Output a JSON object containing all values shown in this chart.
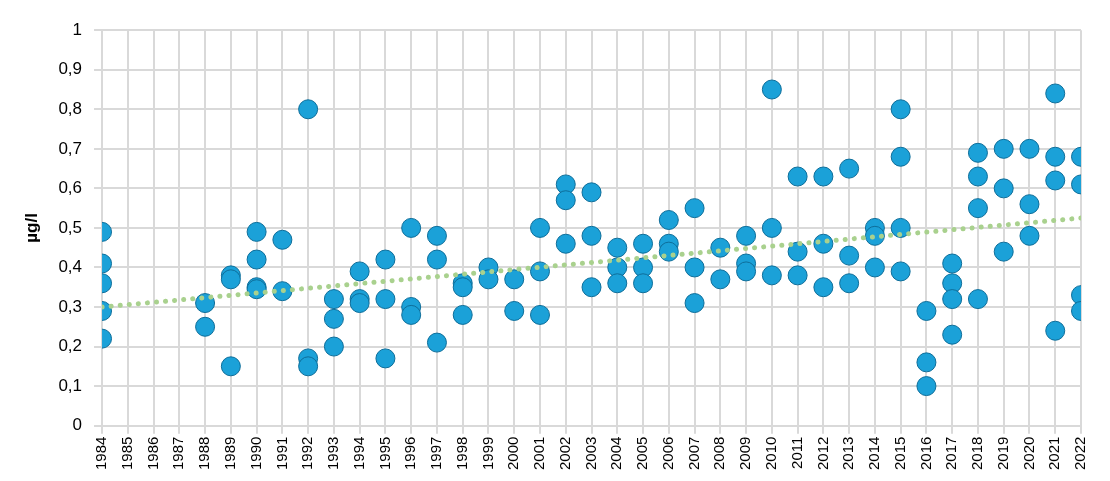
{
  "chart_data": {
    "type": "scatter",
    "ylabel": "µg/l",
    "xlim": [
      1984,
      2022
    ],
    "xticks": [
      1984,
      1985,
      1986,
      1987,
      1988,
      1989,
      1990,
      1991,
      1992,
      1993,
      1994,
      1995,
      1996,
      1997,
      1998,
      1999,
      2000,
      2001,
      2002,
      2003,
      2004,
      2005,
      2006,
      2007,
      2008,
      2009,
      2010,
      2011,
      2012,
      2013,
      2014,
      2015,
      2016,
      2017,
      2018,
      2019,
      2020,
      2021,
      2022
    ],
    "ylim": [
      0,
      1
    ],
    "yticks": [
      0,
      {
        "value": 0.1,
        "label": "0,1"
      },
      {
        "value": 0.2,
        "label": "0,2"
      },
      {
        "value": 0.3,
        "label": "0,3"
      },
      {
        "value": 0.4,
        "label": "0,4"
      },
      {
        "value": 0.5,
        "label": "0,5"
      },
      {
        "value": 0.6,
        "label": "0,6"
      },
      {
        "value": 0.7,
        "label": "0,7"
      },
      {
        "value": 0.8,
        "label": "0,8"
      },
      {
        "value": 0.9,
        "label": "0,9"
      },
      1
    ],
    "grid": true,
    "legend": false,
    "marker": "circle",
    "series": [
      {
        "type": "scatter",
        "color": "#1ba1d8",
        "x": [
          1984,
          1984,
          1984,
          1984,
          1984,
          1988,
          1988,
          1989,
          1989,
          1989,
          1990,
          1990,
          1990,
          1990,
          1991,
          1991,
          1992,
          1992,
          1992,
          1993,
          1993,
          1993,
          1994,
          1994,
          1994,
          1995,
          1995,
          1995,
          1996,
          1996,
          1996,
          1997,
          1997,
          1997,
          1998,
          1998,
          1998,
          1999,
          1999,
          2000,
          2000,
          2001,
          2001,
          2001,
          2002,
          2002,
          2002,
          2003,
          2003,
          2003,
          2004,
          2004,
          2004,
          2005,
          2005,
          2005,
          2006,
          2006,
          2006,
          2007,
          2007,
          2007,
          2008,
          2008,
          2009,
          2009,
          2009,
          2010,
          2010,
          2010,
          2011,
          2011,
          2011,
          2012,
          2012,
          2012,
          2013,
          2013,
          2013,
          2014,
          2014,
          2014,
          2015,
          2015,
          2015,
          2015,
          2016,
          2016,
          2016,
          2017,
          2017,
          2017,
          2017,
          2018,
          2018,
          2018,
          2018,
          2019,
          2019,
          2019,
          2020,
          2020,
          2020,
          2021,
          2021,
          2021,
          2021,
          2022,
          2022,
          2022,
          2022
        ],
        "values": [
          0.49,
          0.41,
          0.36,
          0.29,
          0.22,
          0.31,
          0.25,
          0.38,
          0.37,
          0.15,
          0.49,
          0.42,
          0.35,
          0.345,
          0.47,
          0.34,
          0.8,
          0.17,
          0.15,
          0.32,
          0.27,
          0.2,
          0.39,
          0.32,
          0.31,
          0.42,
          0.32,
          0.17,
          0.5,
          0.3,
          0.28,
          0.48,
          0.42,
          0.21,
          0.36,
          0.35,
          0.28,
          0.4,
          0.37,
          0.37,
          0.29,
          0.5,
          0.39,
          0.28,
          0.61,
          0.57,
          0.46,
          0.59,
          0.48,
          0.35,
          0.45,
          0.4,
          0.36,
          0.46,
          0.4,
          0.36,
          0.52,
          0.46,
          0.44,
          0.55,
          0.4,
          0.31,
          0.45,
          0.37,
          0.48,
          0.41,
          0.39,
          0.85,
          0.5,
          0.38,
          0.63,
          0.44,
          0.38,
          0.63,
          0.46,
          0.35,
          0.65,
          0.43,
          0.36,
          0.5,
          0.48,
          0.4,
          0.8,
          0.68,
          0.5,
          0.39,
          0.29,
          0.16,
          0.1,
          0.41,
          0.36,
          0.32,
          0.23,
          0.69,
          0.63,
          0.55,
          0.32,
          0.7,
          0.6,
          0.44,
          0.7,
          0.56,
          0.48,
          0.84,
          0.68,
          0.62,
          0.24,
          0.68,
          0.61,
          0.33,
          0.29
        ]
      },
      {
        "type": "line",
        "color": "#a9d18e",
        "line_style": "dotted",
        "marker": "none",
        "x": [
          1984,
          2022
        ],
        "values": [
          0.3,
          0.525
        ]
      }
    ]
  }
}
